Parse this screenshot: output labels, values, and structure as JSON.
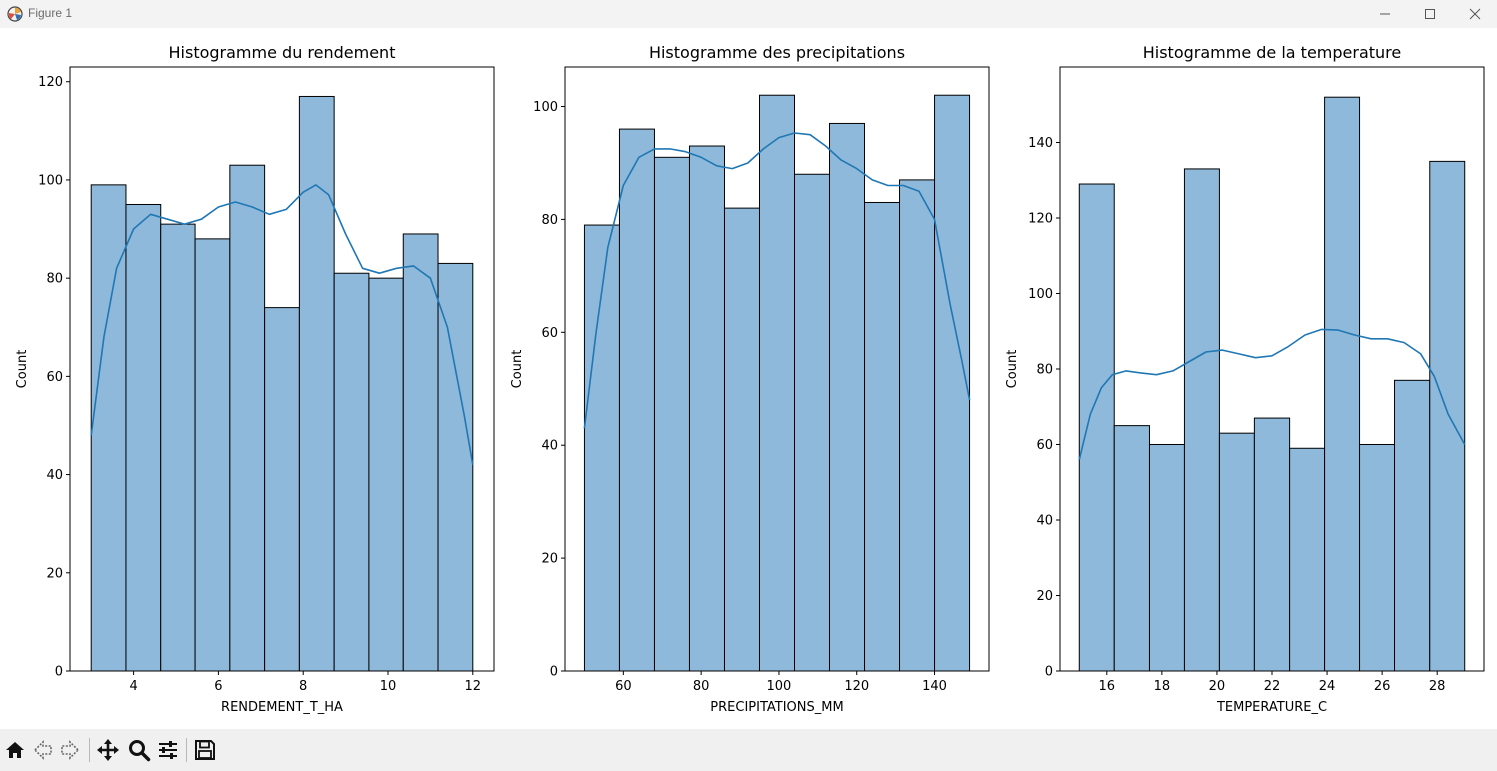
{
  "window": {
    "title": "Figure 1"
  },
  "toolbar": {
    "items": [
      "home-icon",
      "back-arrow-icon",
      "forward-arrow-icon",
      "pan-icon",
      "zoom-icon",
      "configure-subplots-icon",
      "save-icon"
    ]
  },
  "colors": {
    "bar_fill": "#8fb9da",
    "kde_line": "#1f77b4",
    "bar_edge": "#000000"
  },
  "chart_data": [
    {
      "type": "bar",
      "title": "Histogramme du rendement",
      "xlabel": "RENDEMENT_T_HA",
      "ylabel": "Count",
      "bin_edges": [
        3.0,
        3.82,
        4.64,
        5.45,
        6.27,
        7.09,
        7.91,
        8.73,
        9.55,
        10.36,
        11.18,
        12.0
      ],
      "values": [
        99,
        95,
        91,
        88,
        103,
        74,
        117,
        81,
        80,
        89,
        83
      ],
      "xlim": [
        2.5,
        12.5
      ],
      "ylim": [
        0,
        123
      ],
      "xticks": [
        4,
        6,
        8,
        10,
        12
      ],
      "yticks": [
        0,
        20,
        40,
        60,
        80,
        100,
        120
      ],
      "kde": {
        "x": [
          3.0,
          3.3,
          3.6,
          4.0,
          4.4,
          4.8,
          5.2,
          5.6,
          6.0,
          6.4,
          6.8,
          7.2,
          7.6,
          8.0,
          8.3,
          8.6,
          9.0,
          9.4,
          9.8,
          10.2,
          10.6,
          11.0,
          11.4,
          11.8,
          12.0
        ],
        "y": [
          48,
          68,
          82,
          90,
          93,
          92,
          91,
          92,
          94.5,
          95.5,
          94.5,
          93,
          94,
          97.5,
          99,
          97,
          89,
          82,
          81,
          82,
          82.5,
          80,
          70,
          52,
          42
        ]
      }
    },
    {
      "type": "bar",
      "title": "Histogramme des precipitations",
      "xlabel": "PRECIPITATIONS_MM",
      "ylabel": "Count",
      "bin_edges": [
        50.0,
        59.0,
        68.0,
        77.0,
        86.0,
        95.0,
        104.0,
        113.0,
        122.0,
        131.0,
        140.0,
        149.0
      ],
      "values": [
        79,
        96,
        91,
        93,
        82,
        102,
        88,
        97,
        83,
        87,
        102
      ],
      "xlim": [
        45.0,
        154.0
      ],
      "ylim": [
        0,
        107
      ],
      "xticks": [
        60,
        80,
        100,
        120,
        140
      ],
      "yticks": [
        0,
        20,
        40,
        60,
        80,
        100
      ],
      "kde": {
        "x": [
          50,
          53,
          56,
          60,
          64,
          68,
          72,
          76,
          80,
          84,
          88,
          92,
          96,
          100,
          104,
          108,
          112,
          116,
          120,
          124,
          128,
          132,
          136,
          140,
          144,
          147,
          149
        ],
        "y": [
          43,
          60,
          75,
          86,
          91,
          92.5,
          92.5,
          92,
          91,
          89.5,
          89,
          90,
          92.5,
          94.5,
          95.3,
          95,
          93,
          90.5,
          89,
          87,
          86,
          86,
          85,
          80,
          65,
          55,
          48
        ]
      }
    },
    {
      "type": "bar",
      "title": "Histogramme de la temperature",
      "xlabel": "TEMPERATURE_C",
      "ylabel": "Count",
      "bin_edges": [
        15.0,
        16.27,
        17.55,
        18.82,
        20.09,
        21.36,
        22.64,
        23.91,
        25.18,
        26.45,
        27.73,
        29.0
      ],
      "values": [
        129,
        65,
        60,
        133,
        63,
        67,
        59,
        152,
        60,
        77,
        135
      ],
      "xlim": [
        14.3,
        29.7
      ],
      "ylim": [
        0,
        160
      ],
      "xticks": [
        16,
        18,
        20,
        22,
        24,
        26,
        28
      ],
      "yticks": [
        0,
        20,
        40,
        60,
        80,
        100,
        120,
        140
      ],
      "kde": {
        "x": [
          15.0,
          15.4,
          15.8,
          16.2,
          16.7,
          17.2,
          17.8,
          18.4,
          19.0,
          19.6,
          20.2,
          20.8,
          21.4,
          22.0,
          22.6,
          23.2,
          23.8,
          24.4,
          25.0,
          25.6,
          26.2,
          26.8,
          27.4,
          27.9,
          28.4,
          29.0
        ],
        "y": [
          56,
          68,
          75,
          78.5,
          79.5,
          79,
          78.5,
          79.5,
          82,
          84.5,
          85,
          84,
          83,
          83.5,
          86,
          89,
          90.5,
          90.3,
          89,
          88,
          88,
          87,
          84,
          78,
          68,
          60
        ]
      }
    }
  ]
}
